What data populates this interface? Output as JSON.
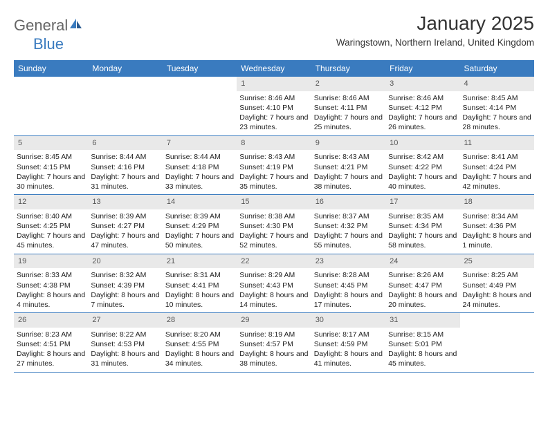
{
  "brand": {
    "part1": "General",
    "part2": "Blue"
  },
  "title": "January 2025",
  "location": "Waringstown, Northern Ireland, United Kingdom",
  "colors": {
    "header_bg": "#3a7bbf",
    "header_text": "#ffffff",
    "daynum_bg": "#e9e9e9",
    "daynum_text": "#555555",
    "body_text": "#222222",
    "page_bg": "#ffffff",
    "row_border": "#3a7bbf",
    "brand_gray": "#666666",
    "brand_blue": "#3a7bbf"
  },
  "typography": {
    "title_fontsize": 28,
    "location_fontsize": 13.5,
    "dayheader_fontsize": 12,
    "daynum_fontsize": 11,
    "cell_fontsize": 10.5
  },
  "day_headers": [
    "Sunday",
    "Monday",
    "Tuesday",
    "Wednesday",
    "Thursday",
    "Friday",
    "Saturday"
  ],
  "weeks": [
    [
      {
        "num": "",
        "sunrise": "",
        "sunset": "",
        "daylight": ""
      },
      {
        "num": "",
        "sunrise": "",
        "sunset": "",
        "daylight": ""
      },
      {
        "num": "",
        "sunrise": "",
        "sunset": "",
        "daylight": ""
      },
      {
        "num": "1",
        "sunrise": "Sunrise: 8:46 AM",
        "sunset": "Sunset: 4:10 PM",
        "daylight": "Daylight: 7 hours and 23 minutes."
      },
      {
        "num": "2",
        "sunrise": "Sunrise: 8:46 AM",
        "sunset": "Sunset: 4:11 PM",
        "daylight": "Daylight: 7 hours and 25 minutes."
      },
      {
        "num": "3",
        "sunrise": "Sunrise: 8:46 AM",
        "sunset": "Sunset: 4:12 PM",
        "daylight": "Daylight: 7 hours and 26 minutes."
      },
      {
        "num": "4",
        "sunrise": "Sunrise: 8:45 AM",
        "sunset": "Sunset: 4:14 PM",
        "daylight": "Daylight: 7 hours and 28 minutes."
      }
    ],
    [
      {
        "num": "5",
        "sunrise": "Sunrise: 8:45 AM",
        "sunset": "Sunset: 4:15 PM",
        "daylight": "Daylight: 7 hours and 30 minutes."
      },
      {
        "num": "6",
        "sunrise": "Sunrise: 8:44 AM",
        "sunset": "Sunset: 4:16 PM",
        "daylight": "Daylight: 7 hours and 31 minutes."
      },
      {
        "num": "7",
        "sunrise": "Sunrise: 8:44 AM",
        "sunset": "Sunset: 4:18 PM",
        "daylight": "Daylight: 7 hours and 33 minutes."
      },
      {
        "num": "8",
        "sunrise": "Sunrise: 8:43 AM",
        "sunset": "Sunset: 4:19 PM",
        "daylight": "Daylight: 7 hours and 35 minutes."
      },
      {
        "num": "9",
        "sunrise": "Sunrise: 8:43 AM",
        "sunset": "Sunset: 4:21 PM",
        "daylight": "Daylight: 7 hours and 38 minutes."
      },
      {
        "num": "10",
        "sunrise": "Sunrise: 8:42 AM",
        "sunset": "Sunset: 4:22 PM",
        "daylight": "Daylight: 7 hours and 40 minutes."
      },
      {
        "num": "11",
        "sunrise": "Sunrise: 8:41 AM",
        "sunset": "Sunset: 4:24 PM",
        "daylight": "Daylight: 7 hours and 42 minutes."
      }
    ],
    [
      {
        "num": "12",
        "sunrise": "Sunrise: 8:40 AM",
        "sunset": "Sunset: 4:25 PM",
        "daylight": "Daylight: 7 hours and 45 minutes."
      },
      {
        "num": "13",
        "sunrise": "Sunrise: 8:39 AM",
        "sunset": "Sunset: 4:27 PM",
        "daylight": "Daylight: 7 hours and 47 minutes."
      },
      {
        "num": "14",
        "sunrise": "Sunrise: 8:39 AM",
        "sunset": "Sunset: 4:29 PM",
        "daylight": "Daylight: 7 hours and 50 minutes."
      },
      {
        "num": "15",
        "sunrise": "Sunrise: 8:38 AM",
        "sunset": "Sunset: 4:30 PM",
        "daylight": "Daylight: 7 hours and 52 minutes."
      },
      {
        "num": "16",
        "sunrise": "Sunrise: 8:37 AM",
        "sunset": "Sunset: 4:32 PM",
        "daylight": "Daylight: 7 hours and 55 minutes."
      },
      {
        "num": "17",
        "sunrise": "Sunrise: 8:35 AM",
        "sunset": "Sunset: 4:34 PM",
        "daylight": "Daylight: 7 hours and 58 minutes."
      },
      {
        "num": "18",
        "sunrise": "Sunrise: 8:34 AM",
        "sunset": "Sunset: 4:36 PM",
        "daylight": "Daylight: 8 hours and 1 minute."
      }
    ],
    [
      {
        "num": "19",
        "sunrise": "Sunrise: 8:33 AM",
        "sunset": "Sunset: 4:38 PM",
        "daylight": "Daylight: 8 hours and 4 minutes."
      },
      {
        "num": "20",
        "sunrise": "Sunrise: 8:32 AM",
        "sunset": "Sunset: 4:39 PM",
        "daylight": "Daylight: 8 hours and 7 minutes."
      },
      {
        "num": "21",
        "sunrise": "Sunrise: 8:31 AM",
        "sunset": "Sunset: 4:41 PM",
        "daylight": "Daylight: 8 hours and 10 minutes."
      },
      {
        "num": "22",
        "sunrise": "Sunrise: 8:29 AM",
        "sunset": "Sunset: 4:43 PM",
        "daylight": "Daylight: 8 hours and 14 minutes."
      },
      {
        "num": "23",
        "sunrise": "Sunrise: 8:28 AM",
        "sunset": "Sunset: 4:45 PM",
        "daylight": "Daylight: 8 hours and 17 minutes."
      },
      {
        "num": "24",
        "sunrise": "Sunrise: 8:26 AM",
        "sunset": "Sunset: 4:47 PM",
        "daylight": "Daylight: 8 hours and 20 minutes."
      },
      {
        "num": "25",
        "sunrise": "Sunrise: 8:25 AM",
        "sunset": "Sunset: 4:49 PM",
        "daylight": "Daylight: 8 hours and 24 minutes."
      }
    ],
    [
      {
        "num": "26",
        "sunrise": "Sunrise: 8:23 AM",
        "sunset": "Sunset: 4:51 PM",
        "daylight": "Daylight: 8 hours and 27 minutes."
      },
      {
        "num": "27",
        "sunrise": "Sunrise: 8:22 AM",
        "sunset": "Sunset: 4:53 PM",
        "daylight": "Daylight: 8 hours and 31 minutes."
      },
      {
        "num": "28",
        "sunrise": "Sunrise: 8:20 AM",
        "sunset": "Sunset: 4:55 PM",
        "daylight": "Daylight: 8 hours and 34 minutes."
      },
      {
        "num": "29",
        "sunrise": "Sunrise: 8:19 AM",
        "sunset": "Sunset: 4:57 PM",
        "daylight": "Daylight: 8 hours and 38 minutes."
      },
      {
        "num": "30",
        "sunrise": "Sunrise: 8:17 AM",
        "sunset": "Sunset: 4:59 PM",
        "daylight": "Daylight: 8 hours and 41 minutes."
      },
      {
        "num": "31",
        "sunrise": "Sunrise: 8:15 AM",
        "sunset": "Sunset: 5:01 PM",
        "daylight": "Daylight: 8 hours and 45 minutes."
      },
      {
        "num": "",
        "sunrise": "",
        "sunset": "",
        "daylight": ""
      }
    ]
  ]
}
